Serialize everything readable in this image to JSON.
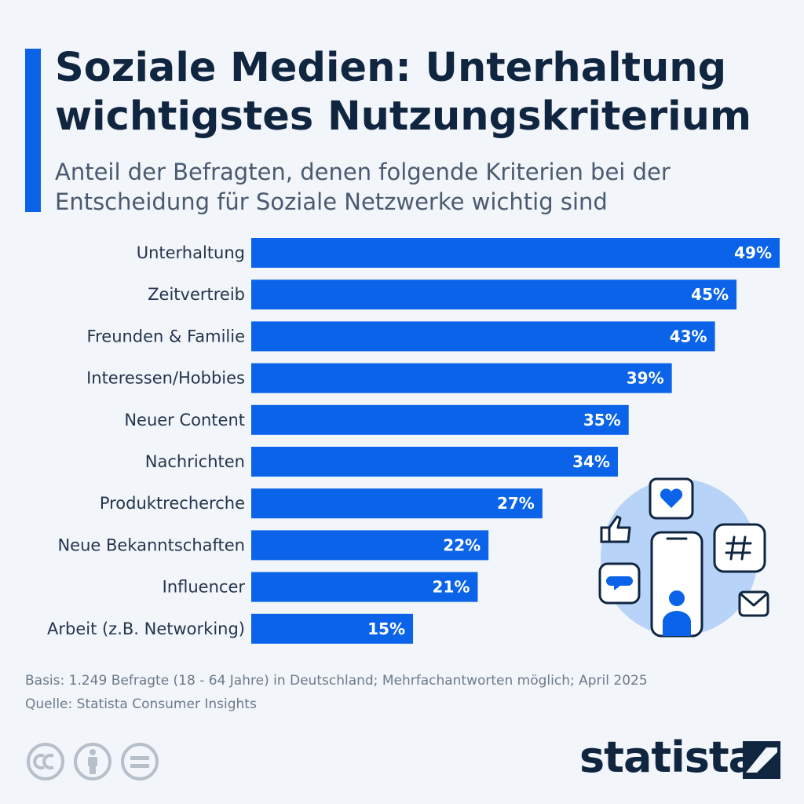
{
  "header": {
    "title": "Soziale Medien: Unterhaltung wichtigstes Nutzungskriterium",
    "subtitle": "Anteil der Befragten, denen folgende Kriterien bei der Entscheidung für Soziale Netzwerke wichtig sind"
  },
  "colors": {
    "bar": "#0a63e8",
    "accent": "#0a63e8",
    "title": "#0f2540",
    "background": "#f2f5f9",
    "illustration_circle": "#b7d3f7"
  },
  "chart_data": {
    "type": "bar",
    "orientation": "horizontal",
    "categories": [
      "Unterhaltung",
      "Zeitvertreib",
      "Freunden & Familie",
      "Interessen/Hobbies",
      "Neuer Content",
      "Nachrichten",
      "Produktrecherche",
      "Neue Bekanntschaften",
      "Influencer",
      "Arbeit (z.B. Networking)"
    ],
    "values": [
      49,
      45,
      43,
      39,
      35,
      34,
      27,
      22,
      21,
      15
    ],
    "value_labels": [
      "49%",
      "45%",
      "43%",
      "39%",
      "35%",
      "34%",
      "27%",
      "22%",
      "21%",
      "15%"
    ],
    "unit": "%",
    "xlim": [
      0,
      49
    ],
    "grid": false,
    "legend": "none"
  },
  "footer": {
    "basis": "Basis: 1.249 Befragte (18 - 64 Jahre) in Deutschland; Mehrfachantworten möglich; April 2025",
    "source": "Quelle: Statista Consumer Insights",
    "logo_text": "statista",
    "license_icons": [
      "cc-icon",
      "attribution-icon",
      "no-derivatives-icon"
    ]
  }
}
